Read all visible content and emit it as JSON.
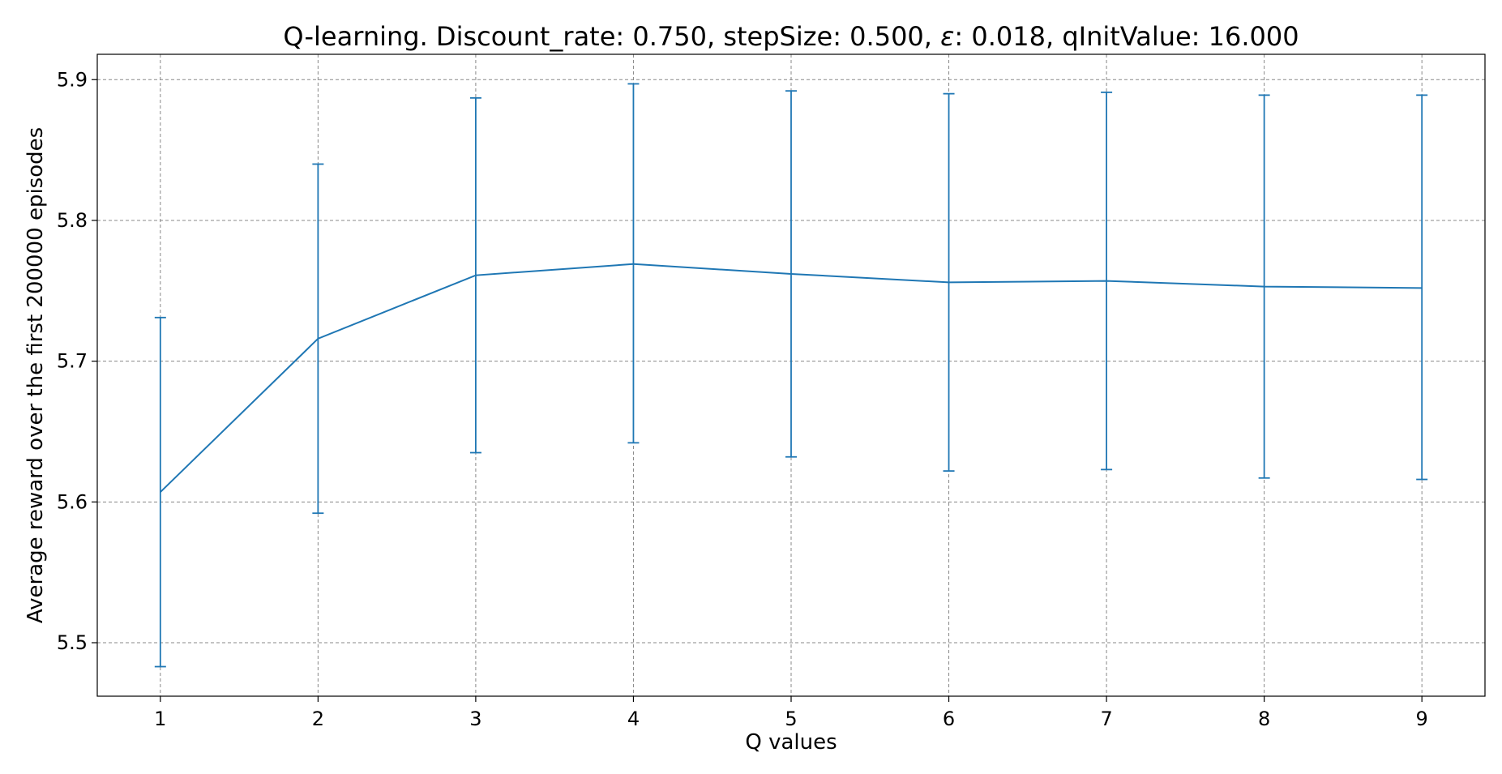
{
  "chart_data": {
    "type": "line",
    "title_parts": {
      "prefix": "Q-learning. Discount_rate: 0.750, stepSize: 0.500, ",
      "epsilon_symbol": "ε",
      "suffix": ": 0.018, qInitValue: 16.000"
    },
    "xlabel": "Q values",
    "ylabel": "Average reward over the first 200000 episodes",
    "x": [
      1,
      2,
      3,
      4,
      5,
      6,
      7,
      8,
      9
    ],
    "xlim": [
      0.6,
      9.4
    ],
    "ylim": [
      5.462,
      5.918
    ],
    "x_ticks": [
      "1",
      "2",
      "3",
      "4",
      "5",
      "6",
      "7",
      "8",
      "9"
    ],
    "y_ticks": [
      "5.5",
      "5.6",
      "5.7",
      "5.8",
      "5.9"
    ],
    "grid": true,
    "series": [
      {
        "values": [
          5.607,
          5.716,
          5.761,
          5.769,
          5.762,
          5.756,
          5.757,
          5.753,
          5.752
        ],
        "error_upper": [
          5.731,
          5.84,
          5.887,
          5.897,
          5.892,
          5.89,
          5.891,
          5.889,
          5.889
        ],
        "error_lower": [
          5.483,
          5.592,
          5.635,
          5.642,
          5.632,
          5.622,
          5.623,
          5.617,
          5.616
        ],
        "color": "#1f77b4"
      }
    ]
  }
}
